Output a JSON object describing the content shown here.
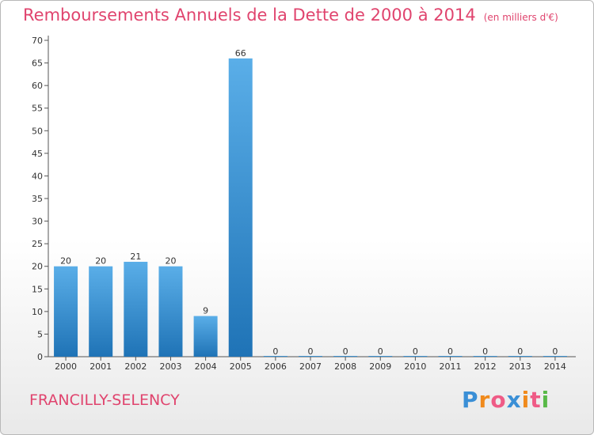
{
  "chart_data": {
    "type": "bar",
    "title": "Remboursements Annuels de la Dette de 2000 à 2014",
    "unit": "(en milliers d'€)",
    "categories": [
      "2000",
      "2001",
      "2002",
      "2003",
      "2004",
      "2005",
      "2006",
      "2007",
      "2008",
      "2009",
      "2010",
      "2011",
      "2012",
      "2013",
      "2014"
    ],
    "values": [
      20,
      20,
      21,
      20,
      9,
      66,
      0,
      0,
      0,
      0,
      0,
      0,
      0,
      0,
      0
    ],
    "xlabel": "",
    "ylabel": "",
    "ylim": [
      0,
      70
    ],
    "yticks": [
      0,
      5,
      10,
      15,
      20,
      25,
      30,
      35,
      40,
      45,
      50,
      55,
      60,
      65,
      70
    ],
    "grid": false,
    "bar_color_light": "#5aaee8",
    "bar_color_dark": "#1f73b6"
  },
  "footer": {
    "commune": "FRANCILLY-SELENCY",
    "logo_letters": [
      "P",
      "r",
      "o",
      "x",
      "i",
      "t",
      "i"
    ],
    "logo_colors": [
      "#3a8fd6",
      "#f08a1c",
      "#ef5b86",
      "#3a8fd6",
      "#f08a1c",
      "#ef5b86",
      "#58b947"
    ]
  },
  "colors": {
    "title": "#e0446e",
    "axis": "#555555"
  }
}
